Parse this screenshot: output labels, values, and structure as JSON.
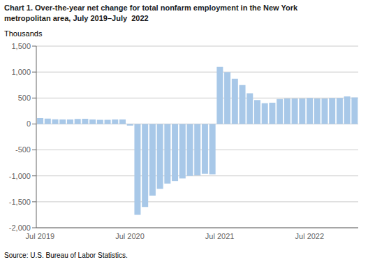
{
  "chart_data": {
    "type": "bar",
    "title": "Chart 1. Over-the-year net change for total nonfarm employment in the New York",
    "subtitle": "metropolitan area, July 2019–July  2022",
    "ylabel": "Thousands",
    "annotations": [
      "Source: U.S. Bureau of Labor Statistics."
    ],
    "categories": [
      "Jul 2019",
      null,
      null,
      null,
      null,
      null,
      null,
      null,
      null,
      null,
      null,
      null,
      "Jul 2020",
      null,
      null,
      null,
      null,
      null,
      null,
      null,
      null,
      null,
      null,
      null,
      "Jul 2021",
      null,
      null,
      null,
      null,
      null,
      null,
      null,
      null,
      null,
      null,
      null,
      "Jul 2022",
      null,
      null,
      null,
      null,
      null,
      null
    ],
    "values": [
      115,
      105,
      90,
      85,
      85,
      95,
      100,
      85,
      80,
      80,
      85,
      85,
      -30,
      -1750,
      -1600,
      -1380,
      -1250,
      -1150,
      -1100,
      -1050,
      -1000,
      -990,
      -960,
      -970,
      1100,
      1000,
      870,
      750,
      590,
      460,
      400,
      410,
      480,
      490,
      490,
      490,
      500,
      490,
      490,
      500,
      500,
      530,
      510
    ],
    "color": "#a8c8e8",
    "ylim": [
      -2000,
      1500
    ],
    "yticks": [
      {
        "value": -2000,
        "label": "-2,000"
      },
      {
        "value": -1500,
        "label": "-1,500"
      },
      {
        "value": -1000,
        "label": "-1,000"
      },
      -500,
      0,
      500,
      {
        "value": 1000,
        "label": "1,000"
      },
      {
        "value": 1500,
        "label": "1,500"
      }
    ],
    "grid": true
  }
}
